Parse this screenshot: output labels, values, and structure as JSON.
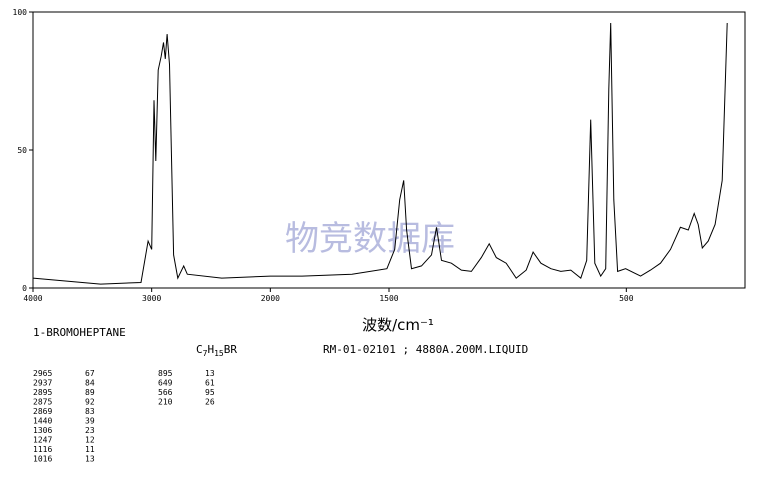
{
  "chart_data": {
    "type": "line",
    "x_label": "波数/cm⁻¹",
    "watermark": "物竞数据库",
    "xlim": [
      4000,
      0
    ],
    "ylim": [
      0,
      100
    ],
    "x_scale": {
      "break": 2000,
      "factor": 2
    },
    "xticks": [
      4000,
      3000,
      2000,
      1500,
      500
    ],
    "yticks": [
      0,
      50,
      100
    ],
    "x": [
      4000,
      3430,
      3090,
      3030,
      3000,
      2980,
      2965,
      2945,
      2920,
      2900,
      2885,
      2870,
      2850,
      2815,
      2780,
      2730,
      2700,
      2410,
      2000,
      1866,
      1656,
      1509,
      1476,
      1455,
      1438,
      1426,
      1405,
      1363,
      1321,
      1300,
      1279,
      1237,
      1195,
      1153,
      1111,
      1078,
      1048,
      1006,
      964,
      922,
      893,
      860,
      818,
      776,
      734,
      692,
      667,
      650,
      633,
      608,
      587,
      574,
      566,
      553,
      537,
      503,
      440,
      398,
      356,
      314,
      272,
      239,
      214,
      197,
      180,
      155,
      126,
      96,
      75
    ],
    "series": [
      {
        "color": "#000000",
        "values": [
          3.6,
          1.4,
          2,
          17,
          14,
          68,
          46,
          79,
          84,
          89,
          83,
          92,
          81,
          12,
          3.6,
          8,
          5,
          3.6,
          4.3,
          4.3,
          5,
          7,
          14,
          32,
          39,
          21,
          7,
          8,
          12,
          22,
          10,
          9,
          6.5,
          6,
          11,
          16,
          11,
          9,
          3.6,
          6.5,
          13,
          9,
          7,
          6,
          6.5,
          3.6,
          10,
          61,
          9,
          4.3,
          7,
          72,
          96,
          32,
          6,
          7,
          4.3,
          6.5,
          9,
          14,
          22,
          21,
          27,
          23,
          14.5,
          17,
          23,
          39,
          96
        ]
      }
    ]
  },
  "compound": "1-BROMOHEPTANE",
  "formula": [
    "C",
    "7",
    "H",
    "15",
    "BR"
  ],
  "reference": "RM-01-02101 ; 4880A.200M.LIQUID",
  "peak_table": [
    [
      [
        "2965",
        "67"
      ],
      [
        "2937",
        "84"
      ],
      [
        "2895",
        "89"
      ],
      [
        "2875",
        "92"
      ],
      [
        "2869",
        "83"
      ],
      [
        "1440",
        "39"
      ],
      [
        "1306",
        "23"
      ],
      [
        "1247",
        "12"
      ],
      [
        "1116",
        "11"
      ],
      [
        "1016",
        "13"
      ]
    ],
    [
      [
        "895",
        "13"
      ],
      [
        "649",
        "61"
      ],
      [
        "566",
        "95"
      ],
      [
        "210",
        "26"
      ]
    ]
  ]
}
